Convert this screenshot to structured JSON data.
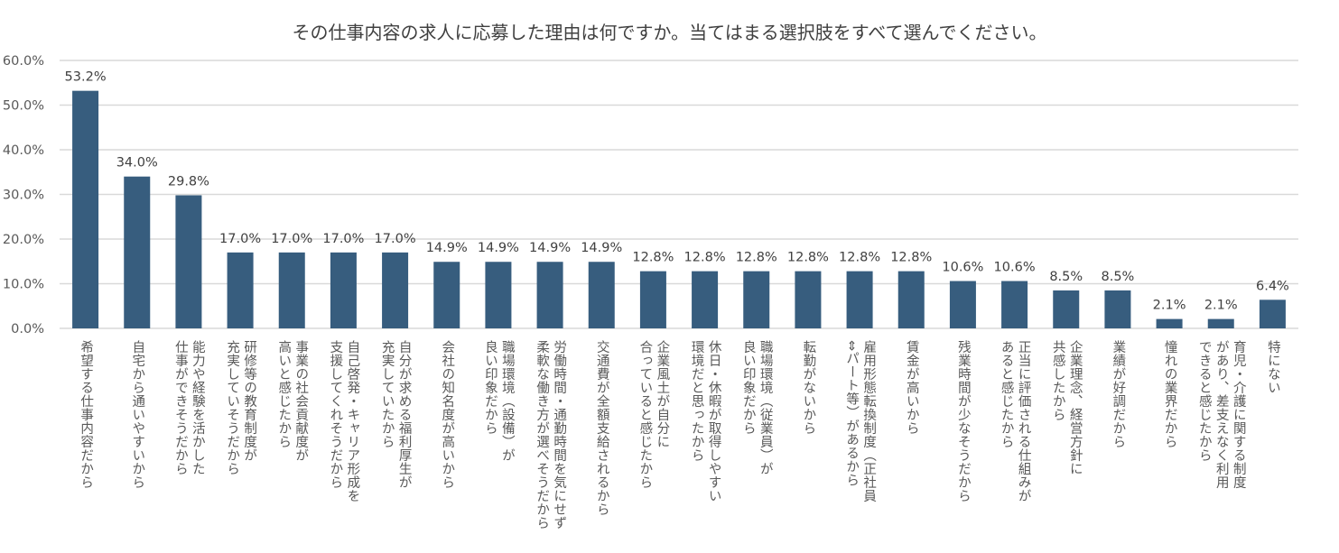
{
  "chart_data": {
    "type": "bar",
    "title": "その仕事内容の求人に応募した理由は何ですか。当てはまる選択肢をすべて選んでください。",
    "xlabel": "",
    "ylabel": "",
    "ylim": [
      0,
      60
    ],
    "yticks": [
      "0.0%",
      "10.0%",
      "20.0%",
      "30.0%",
      "40.0%",
      "50.0%",
      "60.0%"
    ],
    "grid": true,
    "bar_color": "#375d7e",
    "categories": [
      "希望する仕事内容だから",
      "自宅から通いやすいから",
      "能力や経験を活かした\n仕事ができそうだから",
      "研修等の教育制度が\n充実していそうだから",
      "事業の社会貢献度が\n高いと感じたから",
      "自己啓発・キャリア形成を\n支援してくれそうだから",
      "自分が求める福利厚生が\n充実していたから",
      "会社の知名度が高いから",
      "職場環境（設備）が\n良い印象だから",
      "労働時間・通勤時間を気にせず\n柔軟な働き方が選べそうだから",
      "交通費が全額支給されるから",
      "企業風土が自分に\n合っていると感じたから",
      "休日・休暇が取得しやすい\n環境だと思ったから",
      "職場環境（従業員）が\n良い印象だから",
      "転勤がないから",
      "雇用形態転換制度（正社員\n⇔パート等）があるから",
      "賃金が高いから",
      "残業時間が少なそうだから",
      "正当に評価される仕組みが\nあると感じたから",
      "企業理念、経営方針に\n共感したから",
      "業績が好調だから",
      "憧れの業界だから",
      "育児・介護に関する制度\nがあり、差支えなく利用\nできると感じたから",
      "特にない"
    ],
    "values": [
      53.2,
      34.0,
      29.8,
      17.0,
      17.0,
      17.0,
      17.0,
      14.9,
      14.9,
      14.9,
      14.9,
      12.8,
      12.8,
      12.8,
      12.8,
      12.8,
      12.8,
      10.6,
      10.6,
      8.5,
      8.5,
      2.1,
      2.1,
      6.4
    ],
    "data_labels": [
      "53.2%",
      "34.0%",
      "29.8%",
      "17.0%",
      "17.0%",
      "17.0%",
      "17.0%",
      "14.9%",
      "14.9%",
      "14.9%",
      "14.9%",
      "12.8%",
      "12.8%",
      "12.8%",
      "12.8%",
      "12.8%",
      "12.8%",
      "10.6%",
      "10.6%",
      "8.5%",
      "8.5%",
      "2.1%",
      "2.1%",
      "6.4%"
    ]
  }
}
